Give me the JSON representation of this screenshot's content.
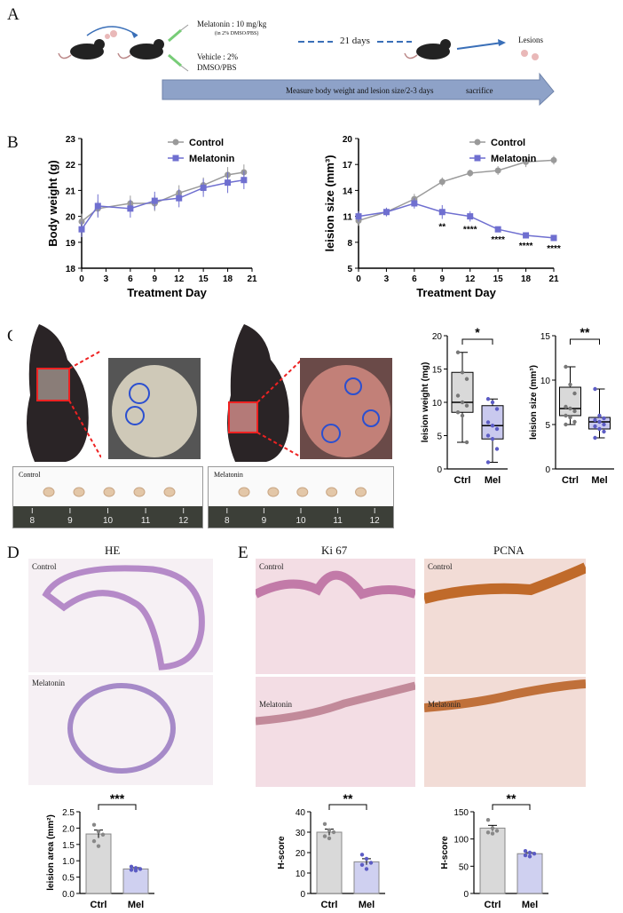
{
  "panels": {
    "a": "A",
    "b": "B",
    "c": "C",
    "d": "D",
    "e": "E"
  },
  "panelA": {
    "melatonin_dose": "Melatonin : 10 mg/kg",
    "melatonin_vehicle_note": "(in 2% DMSO/PBS)",
    "vehicle_line1": "Vehicle : 2%",
    "vehicle_line2": "DMSO/PBS",
    "duration": "21 days",
    "lesions": "Lesions",
    "arrow_text": "Measure body weight and lesion size/2-3 days",
    "sacrifice": "sacrifice"
  },
  "panelC": {
    "control_label": "Control",
    "melatonin_label": "Melatonin",
    "ruler_ticks": [
      "8",
      "9",
      "10",
      "11",
      "12"
    ]
  },
  "panelD": {
    "title": "HE",
    "control_label": "Control",
    "melatonin_label": "Melatonin"
  },
  "panelE": {
    "title_ki67": "Ki 67",
    "title_pcna": "PCNA",
    "control_label": "Control",
    "melatonin_label": "Melatonin"
  },
  "colors": {
    "control": "#9a9a9a",
    "melatonin": "#6f6fd0",
    "mel_bar": "#cfd0f0",
    "ctrl_bar": "#d9d9d9",
    "arrow": "#8ea2c8"
  },
  "chart_data": [
    {
      "id": "body-weight",
      "type": "line",
      "ylabel": "Body weight (g)",
      "xlabel": "Treatment Day",
      "x": [
        0,
        3,
        6,
        9,
        12,
        15,
        18,
        21
      ],
      "xlim": [
        0,
        21
      ],
      "ylim": [
        18,
        23
      ],
      "yticks": [
        18,
        19,
        20,
        21,
        22,
        23
      ],
      "xticks": [
        0,
        3,
        6,
        9,
        12,
        15,
        18,
        21
      ],
      "legend": "top-right",
      "series": [
        {
          "name": "Control",
          "x": [
            0,
            2,
            6,
            9,
            12,
            15,
            18,
            20
          ],
          "values": [
            19.8,
            20.3,
            20.5,
            20.5,
            20.9,
            21.2,
            21.6,
            21.7
          ],
          "err": [
            0.3,
            0.3,
            0.3,
            0.3,
            0.3,
            0.3,
            0.3,
            0.3
          ]
        },
        {
          "name": "Melatonin",
          "x": [
            0,
            2,
            6,
            9,
            12,
            15,
            18,
            20
          ],
          "values": [
            19.5,
            20.4,
            20.3,
            20.6,
            20.7,
            21.1,
            21.3,
            21.4
          ],
          "err": [
            0.3,
            0.45,
            0.35,
            0.35,
            0.35,
            0.35,
            0.4,
            0.35
          ]
        }
      ]
    },
    {
      "id": "lesion-size",
      "type": "line",
      "ylabel": "leision size (mm³)",
      "xlabel": "Treatment Day",
      "x": [
        0,
        3,
        6,
        9,
        12,
        15,
        18,
        21
      ],
      "xlim": [
        0,
        21
      ],
      "ylim": [
        5,
        20
      ],
      "yticks": [
        5,
        8,
        11,
        14,
        17,
        20
      ],
      "xticks": [
        0,
        3,
        6,
        9,
        12,
        15,
        18,
        21
      ],
      "legend": "top-right",
      "series": [
        {
          "name": "Control",
          "x": [
            0,
            3,
            6,
            9,
            12,
            15,
            18,
            21
          ],
          "values": [
            10.5,
            11.5,
            13.0,
            15.0,
            16.0,
            16.3,
            17.3,
            17.5
          ],
          "err": [
            0.6,
            0.5,
            0.6,
            0.5,
            0.4,
            0.5,
            0.6,
            0.5
          ]
        },
        {
          "name": "Melatonin",
          "x": [
            0,
            3,
            6,
            9,
            12,
            15,
            18,
            21
          ],
          "values": [
            11.0,
            11.5,
            12.5,
            11.5,
            11.0,
            9.5,
            8.8,
            8.5
          ],
          "err": [
            0.6,
            0.5,
            0.6,
            0.8,
            0.6,
            0.3,
            0.3,
            0.3
          ]
        }
      ],
      "annotations": [
        {
          "x": 9,
          "text": "**"
        },
        {
          "x": 12,
          "text": "****"
        },
        {
          "x": 15,
          "text": "****"
        },
        {
          "x": 18,
          "text": "****"
        },
        {
          "x": 21,
          "text": "****"
        }
      ]
    },
    {
      "id": "lesion-weight",
      "type": "box",
      "ylabel": "leision weight  (mg)",
      "categories": [
        "Ctrl",
        "Mel"
      ],
      "ylim": [
        0,
        20
      ],
      "yticks": [
        0,
        5,
        10,
        15,
        20
      ],
      "significance": "*",
      "boxes": [
        {
          "min": 4,
          "q1": 8.5,
          "median": 10,
          "q3": 14.5,
          "max": 17.5,
          "points": [
            17.5,
            14.5,
            13.5,
            11,
            10,
            9.5,
            8.5,
            8,
            4
          ]
        },
        {
          "min": 1,
          "q1": 4.5,
          "median": 6.5,
          "q3": 9.5,
          "max": 10.5,
          "points": [
            10.5,
            10,
            9,
            7,
            6.5,
            6,
            5,
            4.5,
            3,
            1
          ]
        }
      ]
    },
    {
      "id": "lesion-size-final",
      "type": "box",
      "ylabel": "leision size (mm³)",
      "categories": [
        "Ctrl",
        "Mel"
      ],
      "ylim": [
        0,
        15
      ],
      "yticks": [
        0,
        5,
        10,
        15
      ],
      "significance": "**",
      "boxes": [
        {
          "min": 5,
          "q1": 6,
          "median": 6.8,
          "q3": 9.2,
          "max": 11.5,
          "points": [
            11.5,
            9.5,
            8.5,
            7,
            6.8,
            6.5,
            6,
            5.8,
            5.3,
            5
          ]
        },
        {
          "min": 3.5,
          "q1": 4.5,
          "median": 5.3,
          "q3": 5.8,
          "max": 9,
          "points": [
            9,
            6,
            5.7,
            5.5,
            5.3,
            5,
            4.8,
            4.5,
            4.2,
            3.5
          ]
        }
      ]
    },
    {
      "id": "lesion-area",
      "type": "bar",
      "ylabel": "leision area (mm²)",
      "categories": [
        "Ctrl",
        "Mel"
      ],
      "values": [
        1.82,
        0.75
      ],
      "err": [
        0.12,
        0.04
      ],
      "ylim": [
        0,
        2.5
      ],
      "yticks": [
        "0.0",
        "0.5",
        "1.0",
        "1.5",
        "2.0",
        "2.5"
      ],
      "significance": "***",
      "points": [
        [
          2.1,
          1.9,
          1.8,
          1.6,
          1.45
        ],
        [
          0.82,
          0.78,
          0.75,
          0.72,
          0.7
        ]
      ]
    },
    {
      "id": "ki67-hscore",
      "type": "bar",
      "ylabel": "H-score",
      "categories": [
        "Ctrl",
        "Mel"
      ],
      "values": [
        30,
        15.5
      ],
      "err": [
        1.5,
        1.5
      ],
      "ylim": [
        0,
        40
      ],
      "yticks": [
        0,
        10,
        20,
        30,
        40
      ],
      "significance": "**",
      "points": [
        [
          34,
          31,
          30,
          28,
          27
        ],
        [
          19,
          17,
          15,
          14,
          12
        ]
      ]
    },
    {
      "id": "pcna-hscore",
      "type": "bar",
      "ylabel": "H-score",
      "categories": [
        "Ctrl",
        "Mel"
      ],
      "values": [
        120,
        73
      ],
      "err": [
        5,
        2
      ],
      "ylim": [
        0,
        150
      ],
      "yticks": [
        0,
        50,
        100,
        150
      ],
      "significance": "**",
      "points": [
        [
          135,
          120,
          115,
          112,
          110
        ],
        [
          78,
          75,
          73,
          70,
          68
        ]
      ]
    }
  ]
}
